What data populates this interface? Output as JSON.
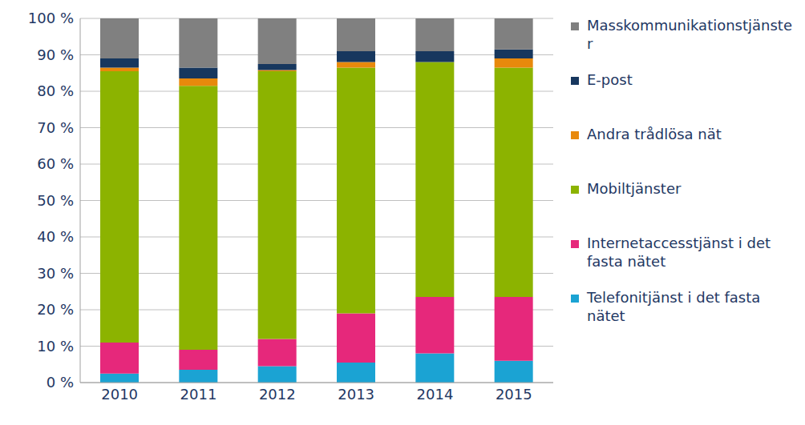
{
  "chart_data": {
    "type": "bar",
    "stacked": true,
    "grid": true,
    "legend": "right",
    "categories": [
      "2010",
      "2011",
      "2012",
      "2013",
      "2014",
      "2015"
    ],
    "ylim": [
      0,
      100
    ],
    "yticks": [
      {
        "value": 0,
        "label": "0 %"
      },
      {
        "value": 10,
        "label": "10 %"
      },
      {
        "value": 20,
        "label": "20 %"
      },
      {
        "value": 30,
        "label": "30 %"
      },
      {
        "value": 40,
        "label": "40 %"
      },
      {
        "value": 50,
        "label": "50 %"
      },
      {
        "value": 60,
        "label": "60 %"
      },
      {
        "value": 70,
        "label": "70 %"
      },
      {
        "value": 80,
        "label": "80 %"
      },
      {
        "value": 90,
        "label": "90 %"
      },
      {
        "value": 100,
        "label": "100 %"
      }
    ],
    "series": [
      {
        "name": "Telefonitjänst i det fasta nätet",
        "color": "#1ba3d3",
        "values": [
          2.5,
          3.5,
          4.5,
          5.5,
          8,
          6
        ]
      },
      {
        "name": "Internetaccesstjänst i det fasta nätet",
        "color": "#e6287b",
        "values": [
          8.5,
          5.5,
          7.5,
          13.5,
          15.5,
          17.5
        ]
      },
      {
        "name": "Mobiltjänster",
        "color": "#8cb300",
        "values": [
          74.5,
          72.5,
          73.5,
          67.5,
          64.5,
          63
        ]
      },
      {
        "name": "Andra trådlösa nät",
        "color": "#e8890c",
        "values": [
          1,
          2,
          0.3,
          1.5,
          0,
          2.5
        ]
      },
      {
        "name": "E-post",
        "color": "#17375e",
        "values": [
          2.5,
          3,
          1.7,
          3,
          3,
          2.5
        ]
      },
      {
        "name": "Masskommunikationstjänster",
        "color": "#808080",
        "values": [
          11,
          13.5,
          12.5,
          9,
          9,
          8.5
        ]
      }
    ]
  }
}
